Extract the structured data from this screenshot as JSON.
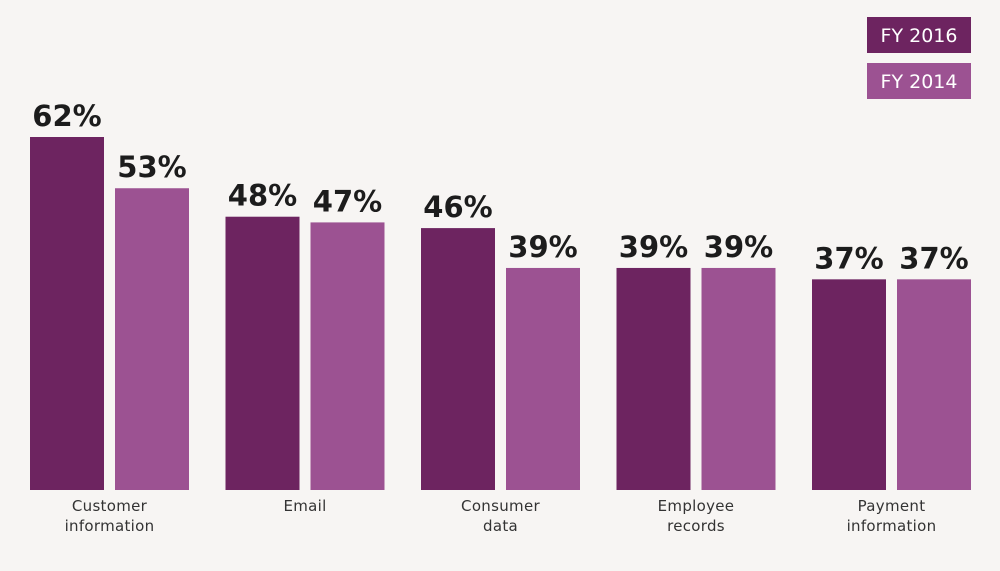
{
  "colors": {
    "fy2016": "#6d2460",
    "fy2014": "#9c5292",
    "background": "#f7f5f3"
  },
  "chart_data": {
    "type": "bar",
    "categories": [
      [
        "Customer",
        "information"
      ],
      [
        "Email"
      ],
      [
        "Consumer",
        "data"
      ],
      [
        "Employee",
        "records"
      ],
      [
        "Payment",
        "information"
      ]
    ],
    "series": [
      {
        "name": "FY 2016",
        "values": [
          62,
          48,
          46,
          39,
          37
        ],
        "labels": [
          "62%",
          "48%",
          "46%",
          "39%",
          "37%"
        ]
      },
      {
        "name": "FY 2014",
        "values": [
          53,
          47,
          39,
          39,
          37
        ],
        "labels": [
          "53%",
          "47%",
          "39%",
          "39%",
          "37%"
        ]
      }
    ],
    "legend_position": "top-right",
    "ylim": [
      0,
      62
    ],
    "grid": false
  }
}
